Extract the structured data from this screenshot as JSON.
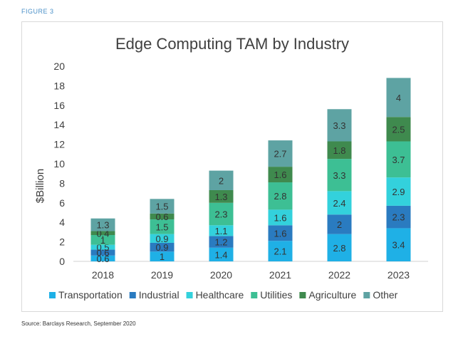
{
  "figure_label": "FIGURE 3",
  "source": "Source: Barclays Research, September 2020",
  "colors": {
    "Transportation": "#1fb0e6",
    "Industrial": "#2a7bc0",
    "Healthcare": "#33d1dc",
    "Utilities": "#3dbf94",
    "Agriculture": "#3f8a4e",
    "Other": "#5ea3a3"
  },
  "chart_data": {
    "type": "bar",
    "stacked": true,
    "title": "Edge Computing TAM by Industry",
    "xlabel": "",
    "ylabel": "$Billion",
    "ylim": [
      0,
      20
    ],
    "yticks": [
      0,
      2,
      4,
      6,
      8,
      10,
      12,
      14,
      16,
      18,
      20
    ],
    "grid": false,
    "legend_position": "bottom",
    "categories": [
      "2018",
      "2019",
      "2020",
      "2021",
      "2022",
      "2023"
    ],
    "series": [
      {
        "name": "Transportation",
        "values": [
          0.6,
          1,
          1.4,
          2.1,
          2.8,
          3.4
        ]
      },
      {
        "name": "Industrial",
        "values": [
          0.6,
          0.9,
          1.2,
          1.6,
          2,
          2.3
        ]
      },
      {
        "name": "Healthcare",
        "values": [
          0.5,
          0.9,
          1.1,
          1.6,
          2.4,
          2.9
        ]
      },
      {
        "name": "Utilities",
        "values": [
          1,
          1.5,
          2.3,
          2.8,
          3.3,
          3.7
        ]
      },
      {
        "name": "Agriculture",
        "values": [
          0.4,
          0.6,
          1.3,
          1.6,
          1.8,
          2.5
        ]
      },
      {
        "name": "Other",
        "values": [
          1.3,
          1.5,
          2,
          2.7,
          3.3,
          4
        ]
      }
    ]
  }
}
